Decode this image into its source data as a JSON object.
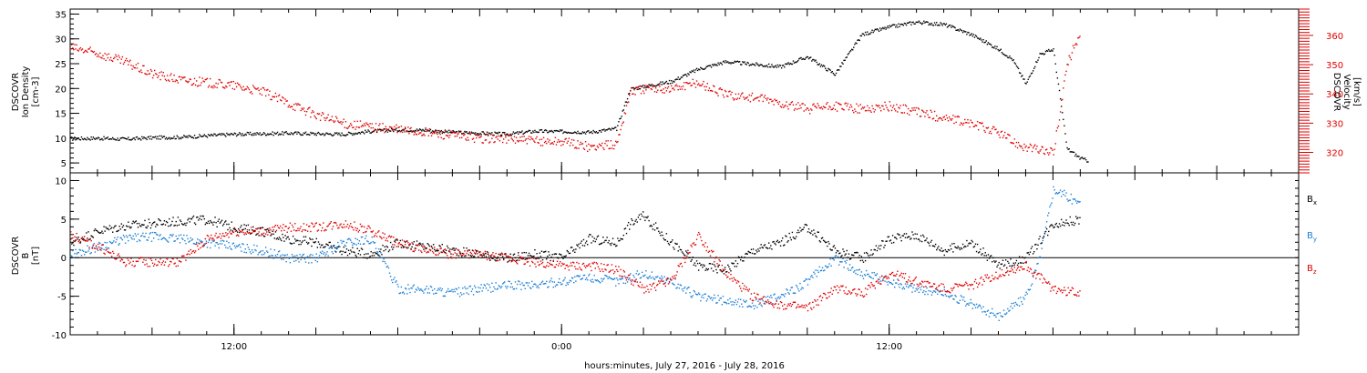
{
  "chart_data": [
    {
      "type": "line",
      "panel": "top",
      "ylabel_lines": [
        "DSCOVR",
        "Ion Density",
        "[cm-3]"
      ],
      "ylim": [
        3,
        36
      ],
      "yticks": [
        "5",
        "10",
        "15",
        "20",
        "25",
        "30",
        "35"
      ],
      "right_axis": {
        "ylabel_lines": [
          "DSCOVR",
          "Velocity",
          "[km/s]"
        ],
        "ylim": [
          313,
          369
        ],
        "yticks": [
          "320",
          "330",
          "340",
          "350",
          "360"
        ],
        "color": "#e00000"
      },
      "series": [
        {
          "axis": "left",
          "color": "#000000",
          "points": [
            [
              0.0,
              10.0
            ],
            [
              1.0,
              10.1
            ],
            [
              2.0,
              9.9
            ],
            [
              3.0,
              10.2
            ],
            [
              4.0,
              10.3
            ],
            [
              5.0,
              10.6
            ],
            [
              6.0,
              10.9
            ],
            [
              7.0,
              11.0
            ],
            [
              8.0,
              11.1
            ],
            [
              9.0,
              11.0
            ],
            [
              10.0,
              10.9
            ],
            [
              11.0,
              11.5
            ],
            [
              12.0,
              11.8
            ],
            [
              13.0,
              11.7
            ],
            [
              14.0,
              11.3
            ],
            [
              15.0,
              11.1
            ],
            [
              16.0,
              10.9
            ],
            [
              17.0,
              11.5
            ],
            [
              18.5,
              11.4
            ],
            [
              19.0,
              11.3
            ],
            [
              20.0,
              12.0
            ],
            [
              20.5,
              20.0
            ],
            [
              21.0,
              20.5
            ],
            [
              22.0,
              21.5
            ],
            [
              23.0,
              24.0
            ],
            [
              24.0,
              25.5
            ],
            [
              25.0,
              25.0
            ],
            [
              26.0,
              24.5
            ],
            [
              27.0,
              26.5
            ],
            [
              28.0,
              23.0
            ],
            [
              29.0,
              31.0
            ],
            [
              30.0,
              32.5
            ],
            [
              31.0,
              33.5
            ],
            [
              32.0,
              33.0
            ],
            [
              33.0,
              31.0
            ],
            [
              34.0,
              28.0
            ],
            [
              34.5,
              26.0
            ],
            [
              35.0,
              21.0
            ],
            [
              35.5,
              27.0
            ],
            [
              36.0,
              28.0
            ],
            [
              36.5,
              8.0
            ],
            [
              37.0,
              6.0
            ],
            [
              37.3,
              5.5
            ]
          ]
        },
        {
          "axis": "right",
          "color": "#e00000",
          "points": [
            [
              0.0,
              356
            ],
            [
              1.0,
              354
            ],
            [
              2.0,
              351
            ],
            [
              3.0,
              347
            ],
            [
              4.0,
              345
            ],
            [
              5.0,
              344
            ],
            [
              6.0,
              343
            ],
            [
              7.0,
              341
            ],
            [
              8.0,
              337
            ],
            [
              9.0,
              333
            ],
            [
              10.0,
              330
            ],
            [
              11.0,
              329
            ],
            [
              12.0,
              328
            ],
            [
              13.0,
              327
            ],
            [
              14.0,
              326
            ],
            [
              15.0,
              325
            ],
            [
              16.0,
              325
            ],
            [
              17.0,
              324
            ],
            [
              18.0,
              324
            ],
            [
              19.0,
              322
            ],
            [
              20.0,
              323
            ],
            [
              20.5,
              341
            ],
            [
              21.0,
              342
            ],
            [
              22.0,
              342
            ],
            [
              23.0,
              344
            ],
            [
              24.0,
              340
            ],
            [
              25.0,
              339
            ],
            [
              26.0,
              337
            ],
            [
              27.0,
              335
            ],
            [
              28.0,
              336
            ],
            [
              29.0,
              335
            ],
            [
              30.0,
              336
            ],
            [
              31.0,
              334
            ],
            [
              32.0,
              332
            ],
            [
              33.0,
              330
            ],
            [
              34.0,
              327
            ],
            [
              34.5,
              324
            ],
            [
              35.0,
              322
            ],
            [
              35.5,
              321
            ],
            [
              36.0,
              320
            ],
            [
              36.5,
              350
            ],
            [
              37.0,
              362
            ]
          ]
        }
      ]
    },
    {
      "type": "line",
      "panel": "bottom",
      "ylabel_lines": [
        "DSCOVR",
        "B",
        "[nT]"
      ],
      "ylim": [
        -10,
        11
      ],
      "yticks": [
        "-10",
        "-5",
        "0",
        "5",
        "10"
      ],
      "zero_line": true,
      "legend": [
        {
          "label": "Bx",
          "main": "B",
          "sub": "x",
          "color": "#000000"
        },
        {
          "label": "By",
          "main": "B",
          "sub": "y",
          "color": "#1a7fd6"
        },
        {
          "label": "Bz",
          "main": "B",
          "sub": "z",
          "color": "#e00000"
        }
      ],
      "legend_position": "right",
      "series": [
        {
          "name": "Bx",
          "color": "#000000",
          "points": [
            [
              0.0,
              2.0
            ],
            [
              1.0,
              3.5
            ],
            [
              2.0,
              4.2
            ],
            [
              3.0,
              4.5
            ],
            [
              4.0,
              4.8
            ],
            [
              5.0,
              5.0
            ],
            [
              6.0,
              4.0
            ],
            [
              7.0,
              3.5
            ],
            [
              8.0,
              2.5
            ],
            [
              9.0,
              2.0
            ],
            [
              10.0,
              1.0
            ],
            [
              11.0,
              0.5
            ],
            [
              12.0,
              2.0
            ],
            [
              13.0,
              1.5
            ],
            [
              14.0,
              1.0
            ],
            [
              15.0,
              0.5
            ],
            [
              16.0,
              0.0
            ],
            [
              17.0,
              0.5
            ],
            [
              18.0,
              0.0
            ],
            [
              19.0,
              2.5
            ],
            [
              20.0,
              2.0
            ],
            [
              20.5,
              4.5
            ],
            [
              21.0,
              5.5
            ],
            [
              22.0,
              2.0
            ],
            [
              23.0,
              -1.0
            ],
            [
              24.0,
              -1.5
            ],
            [
              25.0,
              1.0
            ],
            [
              26.0,
              2.0
            ],
            [
              27.0,
              4.0
            ],
            [
              28.0,
              1.0
            ],
            [
              29.0,
              0.0
            ],
            [
              30.0,
              2.5
            ],
            [
              31.0,
              3.0
            ],
            [
              32.0,
              1.0
            ],
            [
              33.0,
              2.0
            ],
            [
              34.0,
              -1.0
            ],
            [
              35.0,
              0.0
            ],
            [
              36.0,
              4.5
            ],
            [
              37.0,
              5.0
            ]
          ]
        },
        {
          "name": "By",
          "color": "#1a7fd6",
          "points": [
            [
              0.0,
              0.5
            ],
            [
              1.0,
              1.5
            ],
            [
              2.0,
              2.5
            ],
            [
              3.0,
              2.8
            ],
            [
              4.0,
              2.5
            ],
            [
              5.0,
              2.0
            ],
            [
              6.0,
              1.5
            ],
            [
              7.0,
              1.0
            ],
            [
              8.0,
              0.0
            ],
            [
              9.0,
              0.0
            ],
            [
              10.0,
              2.0
            ],
            [
              11.0,
              2.5
            ],
            [
              12.0,
              -4.0
            ],
            [
              13.0,
              -4.0
            ],
            [
              14.0,
              -4.5
            ],
            [
              15.0,
              -4.0
            ],
            [
              16.0,
              -3.5
            ],
            [
              17.0,
              -3.5
            ],
            [
              18.0,
              -3.0
            ],
            [
              19.0,
              -2.5
            ],
            [
              20.0,
              -3.0
            ],
            [
              21.0,
              -2.0
            ],
            [
              22.0,
              -3.0
            ],
            [
              23.0,
              -5.0
            ],
            [
              24.0,
              -5.5
            ],
            [
              25.0,
              -6.0
            ],
            [
              26.0,
              -5.0
            ],
            [
              27.0,
              -3.0
            ],
            [
              28.0,
              0.0
            ],
            [
              29.0,
              -2.0
            ],
            [
              30.0,
              -3.0
            ],
            [
              31.0,
              -4.0
            ],
            [
              32.0,
              -4.5
            ],
            [
              33.0,
              -6.0
            ],
            [
              34.0,
              -7.5
            ],
            [
              35.0,
              -5.0
            ],
            [
              35.5,
              0.0
            ],
            [
              36.0,
              9.0
            ],
            [
              37.0,
              7.0
            ]
          ]
        },
        {
          "name": "Bz",
          "color": "#e00000",
          "points": [
            [
              0.0,
              3.0
            ],
            [
              1.0,
              1.5
            ],
            [
              2.0,
              -0.5
            ],
            [
              3.0,
              -0.5
            ],
            [
              4.0,
              -0.5
            ],
            [
              5.0,
              2.5
            ],
            [
              6.0,
              3.5
            ],
            [
              7.0,
              3.5
            ],
            [
              8.0,
              4.0
            ],
            [
              9.0,
              4.0
            ],
            [
              10.0,
              4.5
            ],
            [
              11.0,
              3.5
            ],
            [
              12.0,
              2.0
            ],
            [
              13.0,
              1.0
            ],
            [
              14.0,
              0.5
            ],
            [
              15.0,
              0.5
            ],
            [
              16.0,
              0.0
            ],
            [
              17.0,
              -0.5
            ],
            [
              18.0,
              -1.0
            ],
            [
              19.0,
              -1.0
            ],
            [
              20.0,
              -1.5
            ],
            [
              21.0,
              -4.0
            ],
            [
              22.0,
              -3.0
            ],
            [
              23.0,
              3.0
            ],
            [
              24.0,
              -2.0
            ],
            [
              25.0,
              -5.0
            ],
            [
              26.0,
              -6.0
            ],
            [
              27.0,
              -6.5
            ],
            [
              28.0,
              -4.0
            ],
            [
              29.0,
              -4.5
            ],
            [
              30.0,
              -2.0
            ],
            [
              31.0,
              -3.0
            ],
            [
              32.0,
              -4.0
            ],
            [
              33.0,
              -3.5
            ],
            [
              34.0,
              -2.0
            ],
            [
              35.0,
              -1.0
            ],
            [
              36.0,
              -4.0
            ],
            [
              37.0,
              -4.5
            ]
          ]
        }
      ]
    }
  ],
  "x_axis": {
    "xlim": [
      0,
      45
    ],
    "major_ticks": [
      {
        "x": 6,
        "label": "12:00"
      },
      {
        "x": 18,
        "label": "0:00"
      },
      {
        "x": 30,
        "label": "12:00"
      }
    ],
    "xlabel": "hours:minutes, July 27, 2016 - July 28, 2016"
  }
}
